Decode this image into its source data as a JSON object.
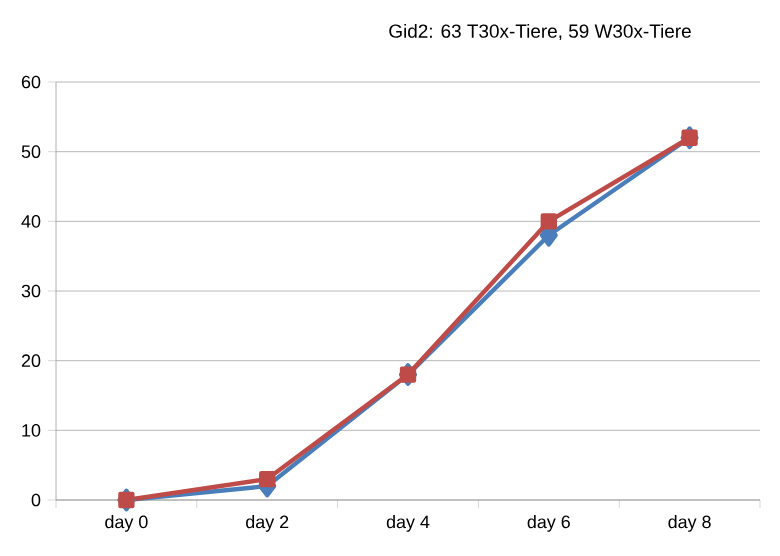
{
  "chart_data": {
    "type": "line",
    "title": "Gid2: 63 T30x-Tiere, 59 W30x-Tiere",
    "categories": [
      "day 0",
      "day 2",
      "day 4",
      "day 6",
      "day 8"
    ],
    "series": [
      {
        "color": "#4a7ebb",
        "values": [
          0,
          2,
          18,
          38,
          52
        ],
        "marker": "diamond"
      },
      {
        "color": "#be4b48",
        "values": [
          0,
          3,
          18,
          40,
          52
        ],
        "marker": "square"
      }
    ],
    "ylim": [
      0,
      60
    ],
    "yticks": [
      0,
      10,
      20,
      30,
      40,
      50,
      60
    ],
    "grid": "y"
  }
}
